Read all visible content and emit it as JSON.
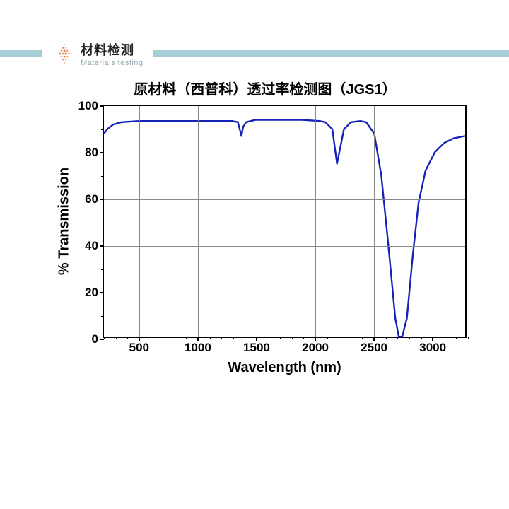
{
  "header": {
    "bar_color": "#a7cdd6",
    "bar_left_width": 60,
    "logo_title_zh": "材料检测",
    "logo_title_en": "Materials testing",
    "logo_dot_color_a": "#e08b2c",
    "logo_dot_color_b": "#d94a2a"
  },
  "chart": {
    "type": "line",
    "title": "原材料（西普科）透过率检测图（JGS1）",
    "title_fontsize": 20,
    "xlabel": "Wavelength (nm)",
    "ylabel": "% Transmission",
    "label_fontsize": 20,
    "tick_fontsize": 17,
    "xlim": [
      200,
      3300
    ],
    "ylim": [
      0,
      100
    ],
    "x_major_ticks": [
      500,
      1000,
      1500,
      2000,
      2500,
      3000
    ],
    "x_minor_step": 100,
    "y_major_ticks": [
      0,
      20,
      40,
      60,
      80,
      100
    ],
    "y_minor_step": 10,
    "background_color": "#ffffff",
    "grid_color": "#888888",
    "border_color": "#000000",
    "line_color": "#1522b8",
    "line_width": 2.4,
    "data": [
      [
        200,
        88
      ],
      [
        230,
        90
      ],
      [
        280,
        92
      ],
      [
        350,
        93
      ],
      [
        500,
        93.5
      ],
      [
        700,
        93.5
      ],
      [
        900,
        93.5
      ],
      [
        1100,
        93.5
      ],
      [
        1300,
        93.5
      ],
      [
        1350,
        93
      ],
      [
        1380,
        87
      ],
      [
        1395,
        91
      ],
      [
        1420,
        93
      ],
      [
        1500,
        94
      ],
      [
        1700,
        94
      ],
      [
        1900,
        94
      ],
      [
        2050,
        93.5
      ],
      [
        2100,
        93
      ],
      [
        2160,
        90
      ],
      [
        2200,
        75
      ],
      [
        2220,
        80
      ],
      [
        2260,
        90
      ],
      [
        2320,
        93
      ],
      [
        2400,
        93.5
      ],
      [
        2450,
        93
      ],
      [
        2520,
        88
      ],
      [
        2580,
        70
      ],
      [
        2640,
        40
      ],
      [
        2700,
        8
      ],
      [
        2730,
        0
      ],
      [
        2760,
        0
      ],
      [
        2800,
        8
      ],
      [
        2850,
        35
      ],
      [
        2900,
        58
      ],
      [
        2960,
        72
      ],
      [
        3040,
        80
      ],
      [
        3120,
        84
      ],
      [
        3200,
        86
      ],
      [
        3300,
        87
      ]
    ]
  }
}
